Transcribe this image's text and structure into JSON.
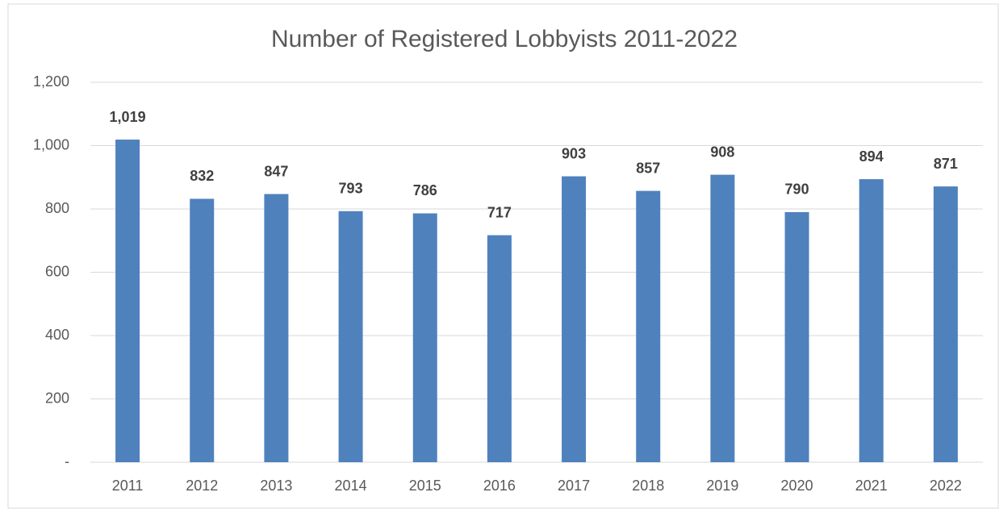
{
  "chart_data": {
    "type": "bar",
    "title": "Number of Registered Lobbyists 2011-2022",
    "categories": [
      "2011",
      "2012",
      "2013",
      "2014",
      "2015",
      "2016",
      "2017",
      "2018",
      "2019",
      "2020",
      "2021",
      "2022"
    ],
    "values": [
      1019,
      832,
      847,
      793,
      786,
      717,
      903,
      857,
      908,
      790,
      894,
      871
    ],
    "value_labels": [
      "1,019",
      "832",
      "847",
      "793",
      "786",
      "717",
      "903",
      "857",
      "908",
      "790",
      "894",
      "871"
    ],
    "color": "#4f81bd",
    "ylim": [
      0,
      1200
    ],
    "yticks": [
      {
        "value": 0,
        "label": "-"
      },
      200,
      400,
      600,
      800,
      {
        "value": 1000,
        "label": "1,000"
      },
      {
        "value": 1200,
        "label": "1,200"
      }
    ],
    "grid": true
  }
}
